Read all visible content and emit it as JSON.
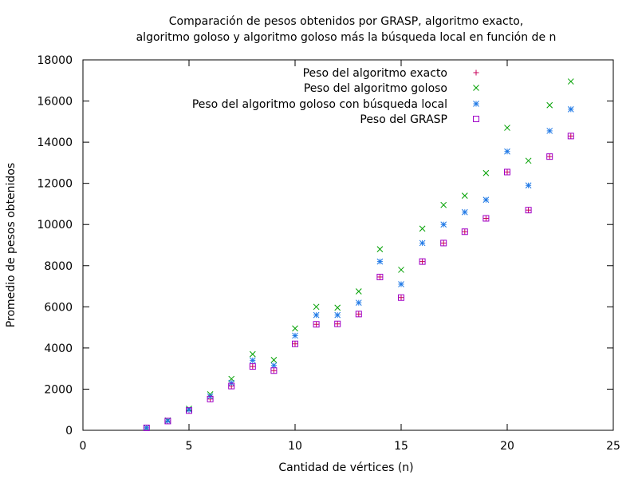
{
  "chart_data": {
    "type": "scatter",
    "title_lines": [
      "Comparación de pesos obtenidos por GRASP, algoritmo exacto,",
      "algoritmo goloso y algoritmo goloso más la búsqueda local en función de n"
    ],
    "xlabel": "Cantidad de vértices (n)",
    "ylabel": "Promedio de pesos obtenidos",
    "xlim": [
      0,
      25
    ],
    "ylim": [
      0,
      18000
    ],
    "xticks": [
      0,
      5,
      10,
      15,
      20,
      25
    ],
    "yticks": [
      0,
      2000,
      4000,
      6000,
      8000,
      10000,
      12000,
      14000,
      16000,
      18000
    ],
    "grid": false,
    "legend_position": "top-right",
    "series": [
      {
        "name": "Peso del algoritmo exacto",
        "color": "#c8005a",
        "marker": "plus",
        "x": [
          3,
          4,
          5,
          6,
          7,
          8,
          9,
          10,
          11,
          12,
          13,
          14,
          15,
          16,
          17,
          18,
          19,
          20,
          21,
          22,
          23
        ],
        "y": [
          120,
          450,
          960,
          1520,
          2150,
          3100,
          2900,
          4200,
          5150,
          5170,
          5650,
          7450,
          6450,
          8200,
          9100,
          9650,
          10300,
          12550,
          10700,
          13300,
          14300
        ]
      },
      {
        "name": "Peso del algoritmo goloso",
        "color": "#00a000",
        "marker": "x",
        "x": [
          3,
          4,
          5,
          6,
          7,
          8,
          9,
          10,
          11,
          12,
          13,
          14,
          15,
          16,
          17,
          18,
          19,
          20,
          21,
          22,
          23
        ],
        "y": [
          120,
          480,
          1050,
          1750,
          2500,
          3700,
          3420,
          4950,
          6000,
          5960,
          6750,
          8800,
          7800,
          9800,
          10950,
          11400,
          12500,
          14700,
          13100,
          15800,
          16950
        ]
      },
      {
        "name": "Peso del algoritmo goloso con búsqueda local",
        "color": "#1e78e6",
        "marker": "star",
        "x": [
          3,
          4,
          5,
          6,
          7,
          8,
          9,
          10,
          11,
          12,
          13,
          14,
          15,
          16,
          17,
          18,
          19,
          20,
          21,
          22,
          23
        ],
        "y": [
          120,
          460,
          1000,
          1650,
          2300,
          3400,
          3150,
          4600,
          5600,
          5600,
          6200,
          8200,
          7100,
          9100,
          10000,
          10600,
          11200,
          13550,
          11900,
          14550,
          15600
        ]
      },
      {
        "name": "Peso del GRASP",
        "color": "#a000c8",
        "marker": "square",
        "x": [
          3,
          4,
          5,
          6,
          7,
          8,
          9,
          10,
          11,
          12,
          13,
          14,
          15,
          16,
          17,
          18,
          19,
          20,
          21,
          22,
          23
        ],
        "y": [
          120,
          450,
          960,
          1520,
          2150,
          3100,
          2900,
          4200,
          5150,
          5170,
          5650,
          7450,
          6450,
          8200,
          9100,
          9650,
          10300,
          12550,
          10700,
          13300,
          14300
        ]
      }
    ]
  }
}
